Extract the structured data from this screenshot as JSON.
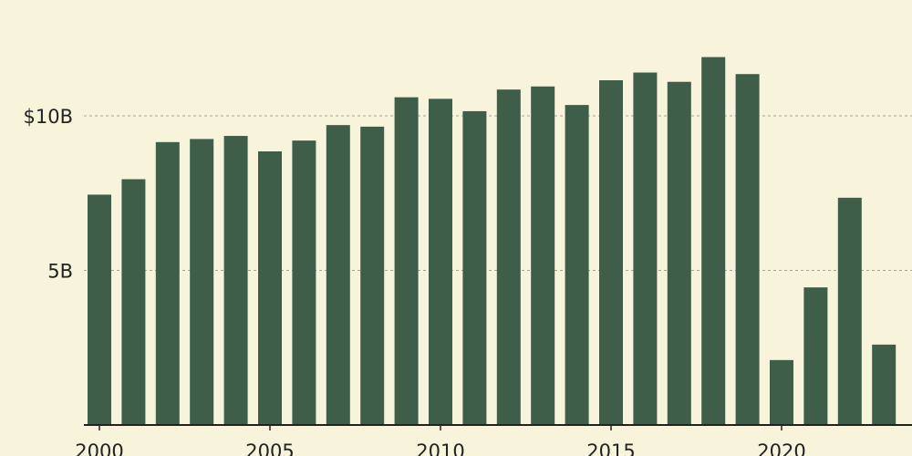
{
  "colors": {
    "background": "#f8f4dc",
    "bar": "#3e5e4a",
    "grid": "#a9a594",
    "axis": "#222222",
    "text": "#222222"
  },
  "chart_data": {
    "type": "bar",
    "title": "",
    "xlabel": "",
    "ylabel": "",
    "x": [
      2000,
      2001,
      2002,
      2003,
      2004,
      2005,
      2006,
      2007,
      2008,
      2009,
      2010,
      2011,
      2012,
      2013,
      2014,
      2015,
      2016,
      2017,
      2018,
      2019,
      2020,
      2021,
      2022,
      2023
    ],
    "values": [
      7.45,
      7.95,
      9.15,
      9.25,
      9.35,
      8.85,
      9.2,
      9.7,
      9.65,
      10.6,
      10.55,
      10.15,
      10.85,
      10.95,
      10.35,
      11.15,
      11.4,
      11.1,
      11.9,
      11.35,
      2.1,
      4.45,
      7.35,
      2.6
    ],
    "unit": "billion USD",
    "ylim": [
      0,
      13.75
    ],
    "yticks": [
      5,
      10
    ],
    "ytick_labels": [
      "5B",
      "$10B"
    ],
    "xticks": [
      2000,
      2005,
      2010,
      2015,
      2020
    ],
    "xtick_labels": [
      "2000",
      "2005",
      "2010",
      "2015",
      "2020"
    ],
    "grid": "horizontal dashed",
    "legend": "none"
  }
}
